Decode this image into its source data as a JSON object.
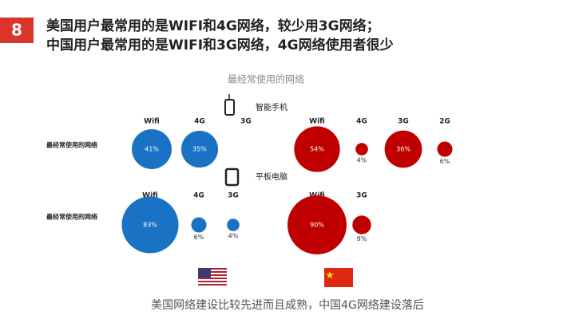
{
  "slide": {
    "number": "8",
    "title": [
      "美国用户最常用的是WIFI和4G网络，较少用3G网络；",
      "中国用户最常用的是WIFI和3G网络，4G网络使用者很少"
    ],
    "subtitle": "最经常使用的网络",
    "devices": [
      "智能手机",
      "平板电脑"
    ],
    "row_labels": [
      "最经常使用的网络",
      "最经常使用的网络"
    ],
    "footer": "美国网络建设比较先进而且成熟，中国4G网络建设落后"
  },
  "chart_data": [
    {
      "type": "bubble",
      "color": "#1a72c4",
      "categories": [
        "Wifi",
        "4G",
        "3G"
      ],
      "values": [
        41,
        35,
        null
      ],
      "value_labels": [
        "41%",
        "35%",
        null
      ]
    },
    {
      "type": "bubble",
      "color": "#c00000",
      "categories": [
        "Wifi",
        "4G",
        "3G",
        "2G"
      ],
      "values": [
        54,
        4,
        36,
        6
      ],
      "value_labels": [
        "54%",
        "4%",
        "36%",
        "6%"
      ]
    },
    {
      "type": "bubble",
      "color": "#1a72c4",
      "categories": [
        "Wifi",
        "4G",
        "3G"
      ],
      "values": [
        83,
        6,
        4
      ],
      "value_labels": [
        "83%",
        "6%",
        "4%"
      ]
    },
    {
      "type": "bubble",
      "color": "#c00000",
      "categories": [
        "Wifi",
        "3G"
      ],
      "values": [
        90,
        9
      ],
      "value_labels": [
        "90%",
        "9%"
      ]
    }
  ]
}
